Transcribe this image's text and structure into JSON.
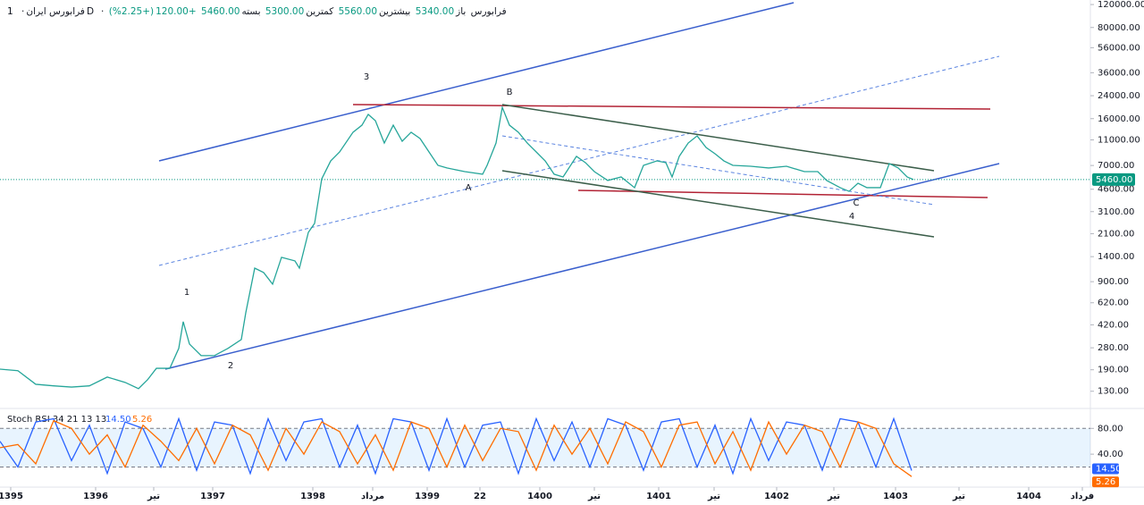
{
  "header": {
    "symbol": "فرابورس ایران",
    "interval": "1D",
    "exchange": "فرابورس",
    "open_label": "باز",
    "open": "5340.00",
    "high_label": "بیشترین",
    "high": "5560.00",
    "low_label": "کمترین",
    "low": "5300.00",
    "close_label": "بسته",
    "close": "5460.00",
    "change": "+120.00",
    "change_pct": "(+2.25%)"
  },
  "annotations": [
    "1",
    "2",
    "3",
    "4",
    "A",
    "B",
    "C"
  ],
  "chart_data": [
    {
      "type": "line",
      "log_scale": true,
      "color": "#26a69a",
      "last_label": "5460.00",
      "last_color": "#089981",
      "x": [
        0,
        20,
        40,
        60,
        80,
        100,
        120,
        140,
        155,
        165,
        175,
        190,
        200,
        205,
        212,
        225,
        240,
        255,
        270,
        275,
        285,
        295,
        305,
        315,
        330,
        335,
        345,
        352,
        360,
        370,
        380,
        395,
        405,
        412,
        420,
        430,
        440,
        450,
        460,
        470,
        480,
        490,
        500,
        520,
        540,
        545,
        555,
        562,
        570,
        580,
        590,
        600,
        610,
        620,
        630,
        645,
        655,
        665,
        680,
        695,
        710,
        720,
        735,
        745,
        752,
        760,
        770,
        780,
        790,
        800,
        810,
        820,
        840,
        860,
        880,
        900,
        915,
        925,
        940,
        950,
        960,
        970,
        985,
        995,
        1005,
        1015,
        1022
      ],
      "values": [
        192,
        187,
        147,
        143,
        140,
        143,
        167,
        152,
        136,
        159,
        195,
        195,
        277,
        444,
        299,
        244,
        244,
        277,
        324,
        520,
        1143,
        1057,
        861,
        1384,
        1298,
        1143,
        2148,
        2518,
        5534,
        7586,
        8892,
        12590,
        14260,
        17260,
        15450,
        10400,
        14260,
        10740,
        12590,
        11270,
        8892,
        7015,
        6700,
        6280,
        6000,
        7015,
        10400,
        19540,
        14260,
        12590,
        10400,
        8892,
        7586,
        6000,
        5715,
        8222,
        7362,
        6280,
        5370,
        5715,
        4732,
        7015,
        7586,
        7362,
        5715,
        8222,
        10400,
        11800,
        9616,
        8610,
        7586,
        7015,
        6902,
        6700,
        6902,
        6280,
        6280,
        5370,
        4732,
        4436,
        5117,
        4732,
        4732,
        7244,
        6700,
        5715,
        5460
      ],
      "xlim": [
        0,
        1220
      ],
      "ylim": [
        99,
        130000
      ],
      "yticks": [
        {
          "value": 120000,
          "label": "120000.00"
        },
        {
          "value": 80000,
          "label": "80000.00"
        },
        {
          "value": 56000,
          "label": "56000.00"
        },
        {
          "value": 36000,
          "label": "36000.00"
        },
        {
          "value": 24000,
          "label": "24000.00"
        },
        {
          "value": 16000,
          "label": "16000.00"
        },
        {
          "value": 11000,
          "label": "11000.00"
        },
        {
          "value": 7000,
          "label": "7000.00"
        },
        {
          "value": 4600,
          "label": "4600.00"
        },
        {
          "value": 3100,
          "label": "3100.00"
        },
        {
          "value": 2100,
          "label": "2100.00"
        },
        {
          "value": 1400,
          "label": "1400.00"
        },
        {
          "value": 900,
          "label": "900.00"
        },
        {
          "value": 620,
          "label": "620.00"
        },
        {
          "value": 420,
          "label": "420.00"
        },
        {
          "value": 280,
          "label": "280.00"
        },
        {
          "value": 190,
          "label": "190.00"
        },
        {
          "value": 130,
          "label": "130.00"
        }
      ],
      "xticks": [
        {
          "value": 12,
          "label": "1395"
        },
        {
          "value": 107,
          "label": "1396"
        },
        {
          "value": 172,
          "label": "تیر"
        },
        {
          "value": 238,
          "label": "1397"
        },
        {
          "value": 350,
          "label": "1398"
        },
        {
          "value": 417,
          "label": "مرداد"
        },
        {
          "value": 478,
          "label": "1399"
        },
        {
          "value": 537,
          "label": "22"
        },
        {
          "value": 604,
          "label": "1400"
        },
        {
          "value": 665,
          "label": "تیر"
        },
        {
          "value": 737,
          "label": "1401"
        },
        {
          "value": 799,
          "label": "تیر"
        },
        {
          "value": 869,
          "label": "1402"
        },
        {
          "value": 933,
          "label": "تیر"
        },
        {
          "value": 1002,
          "label": "1403"
        },
        {
          "value": 1073,
          "label": "تیر"
        },
        {
          "value": 1151,
          "label": "1404"
        },
        {
          "value": 1211,
          "label": "فرداد"
        }
      ]
    },
    {
      "type": "line",
      "title": "Stoch RSI 34 21 13 13",
      "last_labels": [
        "14.50",
        "5.26"
      ],
      "x": [
        0,
        20,
        40,
        60,
        80,
        100,
        120,
        140,
        160,
        180,
        200,
        220,
        240,
        260,
        280,
        300,
        320,
        340,
        360,
        380,
        400,
        420,
        440,
        460,
        480,
        500,
        520,
        540,
        560,
        580,
        600,
        620,
        640,
        660,
        680,
        700,
        720,
        740,
        760,
        780,
        800,
        820,
        840,
        860,
        880,
        900,
        920,
        940,
        960,
        980,
        1000,
        1020
      ],
      "series": [
        {
          "name": "K",
          "color": "#2962ff",
          "values": [
            60,
            20,
            90,
            95,
            30,
            85,
            10,
            90,
            80,
            20,
            95,
            15,
            90,
            85,
            10,
            95,
            30,
            90,
            95,
            20,
            85,
            10,
            95,
            90,
            15,
            95,
            20,
            85,
            90,
            10,
            95,
            30,
            90,
            20,
            95,
            85,
            15,
            90,
            95,
            20,
            85,
            10,
            95,
            30,
            90,
            85,
            15,
            95,
            90,
            20,
            95,
            14.5
          ]
        },
        {
          "name": "D",
          "color": "#ff6d00",
          "values": [
            50,
            55,
            25,
            92,
            80,
            40,
            70,
            20,
            85,
            60,
            30,
            80,
            25,
            85,
            70,
            15,
            80,
            40,
            90,
            75,
            25,
            70,
            15,
            90,
            80,
            20,
            85,
            30,
            80,
            75,
            15,
            85,
            40,
            80,
            25,
            90,
            75,
            20,
            85,
            90,
            25,
            75,
            15,
            90,
            40,
            85,
            75,
            20,
            90,
            80,
            25,
            5.26
          ]
        }
      ],
      "xlim": [
        0,
        1220
      ],
      "ylim": [
        -7,
        104
      ],
      "band": [
        20,
        80
      ],
      "yticks": [
        {
          "value": 80,
          "label": "80.00"
        },
        {
          "value": 40,
          "label": "40.00"
        }
      ]
    }
  ]
}
